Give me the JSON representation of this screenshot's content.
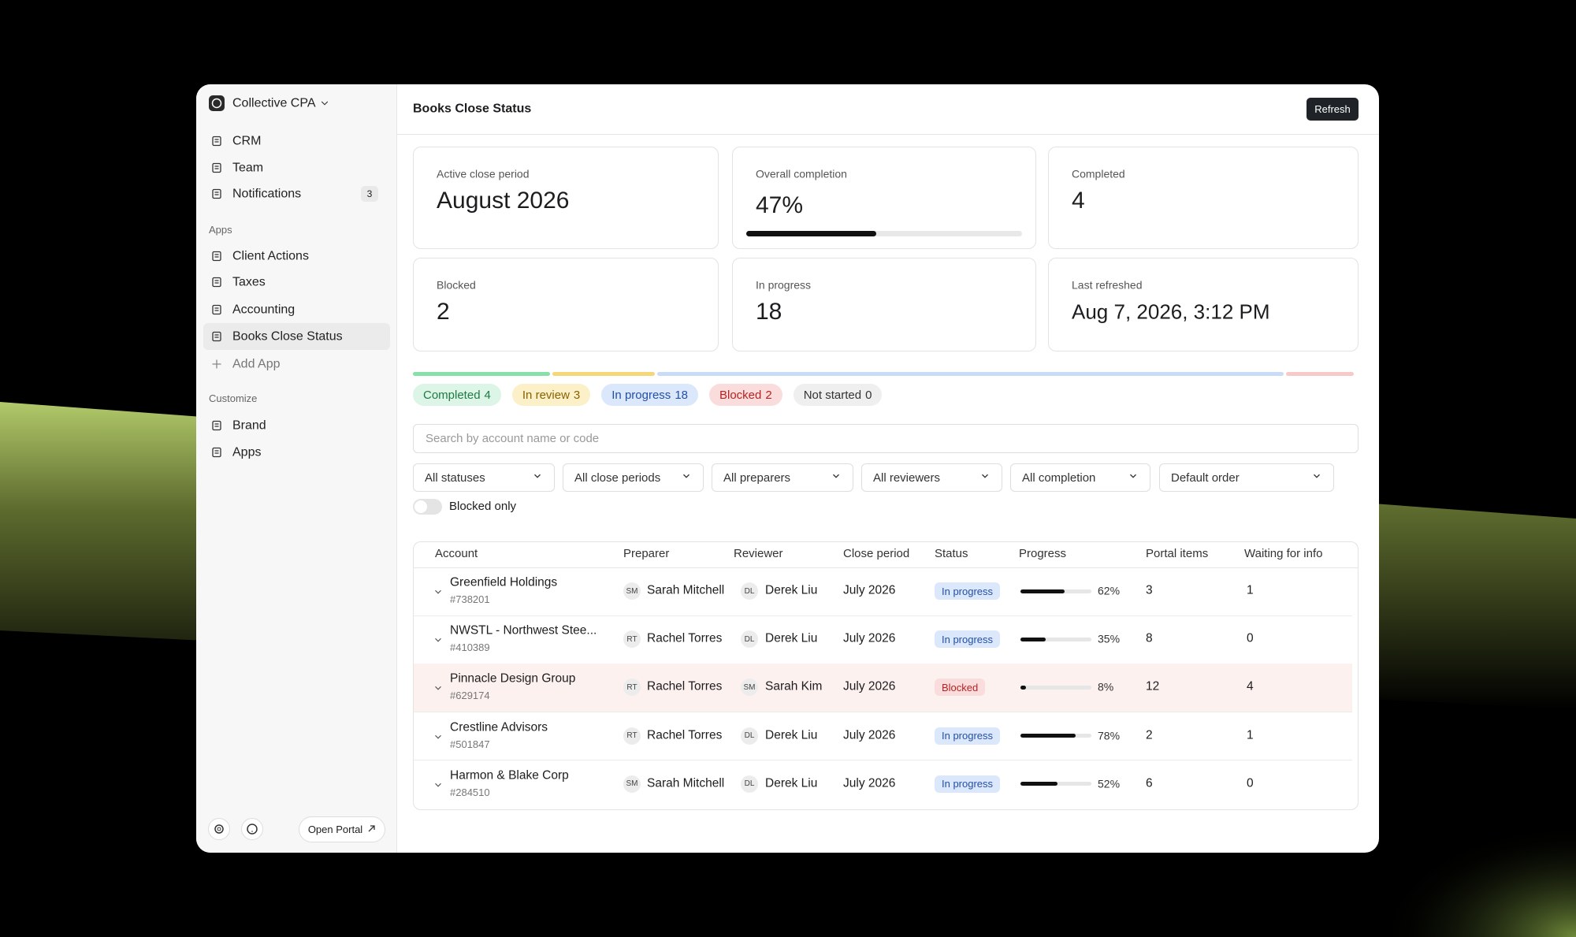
{
  "sidebar": {
    "org": "Collective CPA",
    "nav": [
      {
        "label": "CRM"
      },
      {
        "label": "Team"
      },
      {
        "label": "Notifications",
        "badge": 3
      }
    ],
    "sections": [
      {
        "title": "Apps",
        "items": [
          "Client Actions",
          "Taxes",
          "Accounting",
          "Books Close Status",
          "Add App"
        ],
        "active": 3
      },
      {
        "title": "Customize",
        "items": [
          "Brand",
          "Apps"
        ]
      }
    ],
    "footer": {
      "button": "Open Portal"
    }
  },
  "header": {
    "title": "Books Close Status",
    "button": "Refresh"
  },
  "stats": [
    {
      "label": "Active close period",
      "value": "August 2026"
    },
    {
      "label": "Overall completion",
      "value": 47,
      "value_label": "47%"
    },
    {
      "label": "Completed",
      "value": 4
    },
    {
      "label": "Blocked",
      "value": 2
    },
    {
      "label": "In progress",
      "value": 18
    },
    {
      "label": "Last refreshed",
      "value": "Aug 7, 2026, 3:12 PM"
    }
  ],
  "status_summary": [
    {
      "label": "Completed",
      "count": 4,
      "color": "#1f7a45",
      "background": "#dcf5e6",
      "bar": "#86e0a8"
    },
    {
      "label": "In review",
      "count": 3,
      "color": "#8a6100",
      "background": "#fbf0c8",
      "bar": "#f5d77a"
    },
    {
      "label": "In progress",
      "count": 18,
      "color": "#2450a6",
      "background": "#dbe7fb",
      "bar": "#c9dcf7"
    },
    {
      "label": "Blocked",
      "count": 2,
      "color": "#b42323",
      "background": "#fbdcdc",
      "bar": "#f8c9c9"
    },
    {
      "label": "Not started",
      "count": 0,
      "color": "#333333",
      "background": "#efefef",
      "bar": "#e2e2e2"
    }
  ],
  "filters": {
    "search_placeholder": "Search by account name or code",
    "selects": [
      "All statuses",
      "All close periods",
      "All preparers",
      "All reviewers",
      "All completion",
      "Default order"
    ],
    "toggle": "Blocked only"
  },
  "table": {
    "columns": [
      "Account",
      "Preparer",
      "Reviewer",
      "Close period",
      "Status",
      "Progress",
      "Portal items",
      "Waiting for info"
    ],
    "rows": [
      {
        "account": "Greenfield Holdings",
        "code": "#738201",
        "preparer": {
          "initials": "SM",
          "name": "Sarah Mitchell"
        },
        "reviewer": {
          "initials": "DL",
          "name": "Derek Liu"
        },
        "close_period": "July 2026",
        "status": "In progress",
        "progress": 62,
        "progress_label": "62%",
        "portal_items": 3,
        "waiting_for_info": 1
      },
      {
        "account": "NWSTL - Northwest Stee...",
        "code": "#410389",
        "preparer": {
          "initials": "RT",
          "name": "Rachel Torres"
        },
        "reviewer": {
          "initials": "DL",
          "name": "Derek Liu"
        },
        "close_period": "July 2026",
        "status": "In progress",
        "progress": 35,
        "progress_label": "35%",
        "portal_items": 8,
        "waiting_for_info": 0
      },
      {
        "account": "Pinnacle Design Group",
        "code": "#629174",
        "preparer": {
          "initials": "RT",
          "name": "Rachel Torres"
        },
        "reviewer": {
          "initials": "SM",
          "name": "Sarah Kim"
        },
        "close_period": "July 2026",
        "status": "Blocked",
        "progress": 8,
        "progress_label": "8%",
        "portal_items": 12,
        "waiting_for_info": 4,
        "highlighted": true
      },
      {
        "account": "Crestline Advisors",
        "code": "#501847",
        "preparer": {
          "initials": "RT",
          "name": "Rachel Torres"
        },
        "reviewer": {
          "initials": "DL",
          "name": "Derek Liu"
        },
        "close_period": "July 2026",
        "status": "In progress",
        "progress": 78,
        "progress_label": "78%",
        "portal_items": 2,
        "waiting_for_info": 1
      },
      {
        "account": "Harmon & Blake Corp",
        "code": "#284510",
        "preparer": {
          "initials": "SM",
          "name": "Sarah Mitchell"
        },
        "reviewer": {
          "initials": "DL",
          "name": "Derek Liu"
        },
        "close_period": "July 2026",
        "status": "In progress",
        "progress": 52,
        "progress_label": "52%",
        "portal_items": 6,
        "waiting_for_info": 0
      }
    ]
  }
}
